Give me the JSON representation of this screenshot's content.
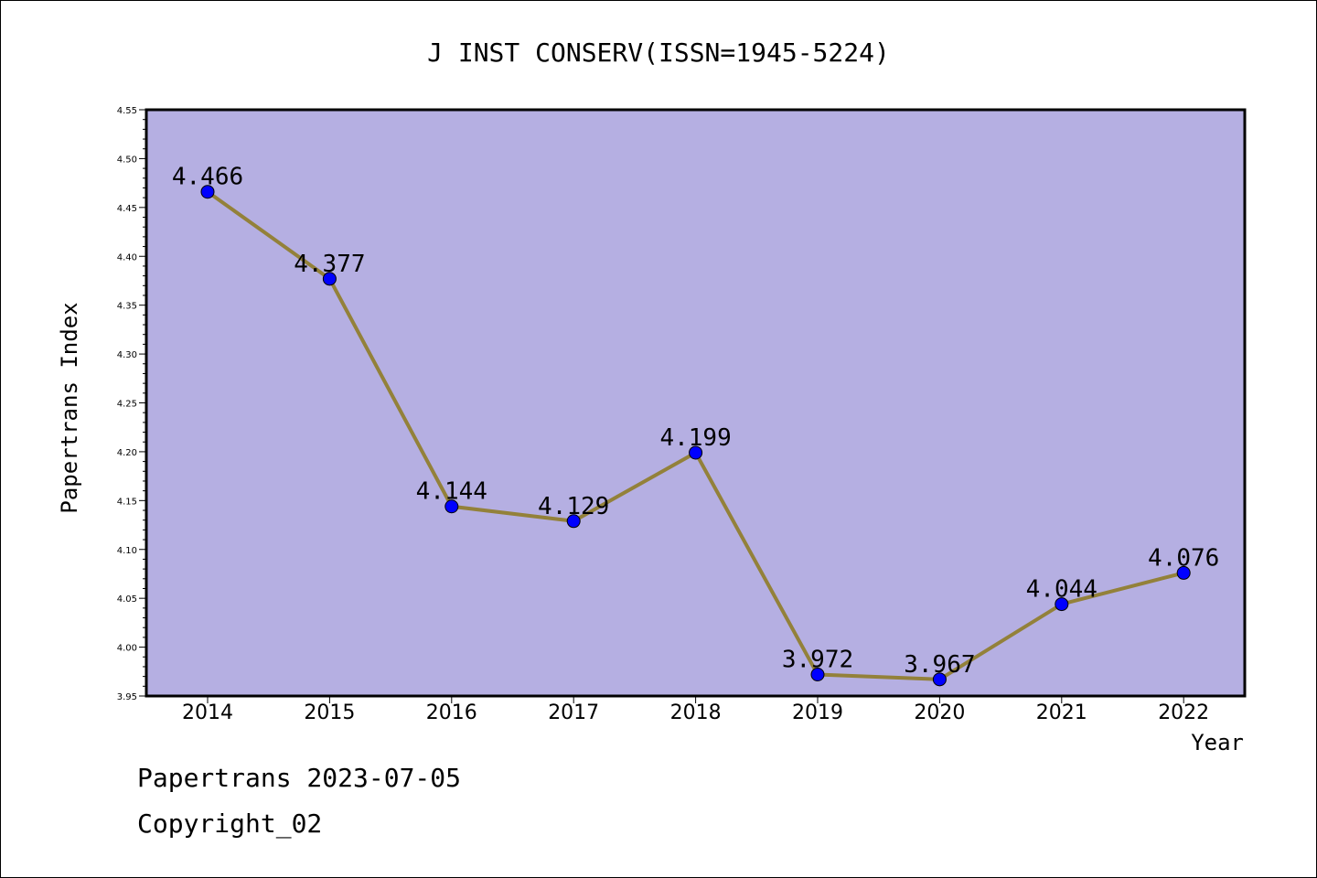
{
  "chart_data": {
    "type": "line",
    "title": "J INST CONSERV(ISSN=1945-5224)",
    "xlabel": "Year",
    "ylabel": "Papertrans Index",
    "x": [
      "2014",
      "2015",
      "2016",
      "2017",
      "2018",
      "2019",
      "2020",
      "2021",
      "2022"
    ],
    "series": [
      {
        "values": [
          4.466,
          4.377,
          4.144,
          4.129,
          4.199,
          3.972,
          3.967,
          4.044,
          4.076
        ],
        "data_labels": [
          "4.466",
          "4.377",
          "4.144",
          "4.129",
          "4.199",
          "3.972",
          "3.967",
          "4.044",
          "4.076"
        ]
      }
    ],
    "ylim": [
      3.95,
      4.55
    ],
    "y_ticks": [
      "3.95",
      "4.00",
      "4.05",
      "4.10",
      "4.15",
      "4.20",
      "4.25",
      "4.30",
      "4.35",
      "4.40",
      "4.45",
      "4.50",
      "4.55"
    ],
    "grid": false,
    "colors": {
      "plot_background": "#b5afe2",
      "line": "#93813a",
      "marker": "#0000ff"
    }
  },
  "footer": {
    "line1": "Papertrans 2023-07-05",
    "line2": "Copyright_02"
  }
}
